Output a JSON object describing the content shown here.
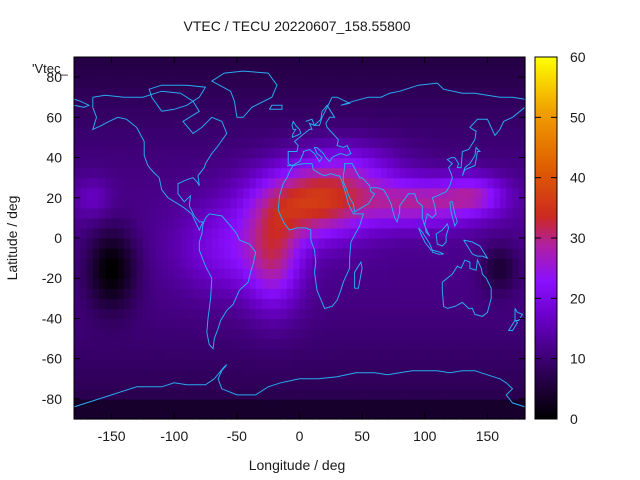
{
  "chart_data": {
    "type": "heatmap",
    "title": "VTEC / TECU 20220607_158.55800",
    "xlabel": "Longitude / deg",
    "ylabel": "Latitude / deg",
    "legend_key": "'Vtec_",
    "xlim": [
      -180,
      180
    ],
    "ylim": [
      -90,
      90
    ],
    "x_ticks": [
      -150,
      -100,
      -50,
      0,
      50,
      100,
      150
    ],
    "y_ticks": [
      -80,
      -60,
      -40,
      -20,
      0,
      20,
      40,
      60,
      80
    ],
    "colorbar": {
      "range": [
        0,
        60
      ],
      "ticks": [
        0,
        10,
        20,
        30,
        40,
        50,
        60
      ]
    },
    "grid": false,
    "cells": {
      "lon_step": 5,
      "lat_step": 5
    },
    "sources": [
      {
        "lon": 10,
        "lat": 18,
        "amp": 22,
        "slon": 45,
        "slat": 18
      },
      {
        "lon": -20,
        "lat": -10,
        "amp": 14,
        "slon": 22,
        "slat": 26
      },
      {
        "lon": -55,
        "lat": -5,
        "amp": 9,
        "slon": 40,
        "slat": 22
      },
      {
        "lon": 95,
        "lat": 18,
        "amp": 16,
        "slon": 50,
        "slat": 12
      },
      {
        "lon": 140,
        "lat": 22,
        "amp": 10,
        "slon": 25,
        "slat": 10
      },
      {
        "lon": 40,
        "lat": 35,
        "amp": 8,
        "slon": 40,
        "slat": 14
      },
      {
        "lon": -150,
        "lat": -15,
        "amp": -12,
        "slon": 20,
        "slat": 20
      },
      {
        "lon": 160,
        "lat": -15,
        "amp": -7,
        "slon": 15,
        "slat": 12
      },
      {
        "lon": -165,
        "lat": 20,
        "amp": 5,
        "slon": 15,
        "slat": 10
      }
    ],
    "base": {
      "equator": 12,
      "pole": 6,
      "south_cap_lat": -80,
      "south_cap": 4
    }
  }
}
